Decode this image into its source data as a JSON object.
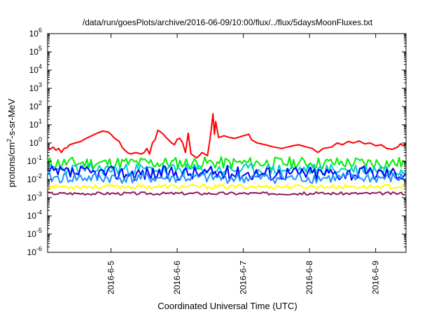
{
  "chart_data": {
    "type": "line",
    "title": "/data/run/goesPlots/archive/2016-06-09/10:00/flux/../flux/5daysMoonFluxes.txt",
    "xlabel": "Coordinated Universal Time (UTC)",
    "ylabel_parts": {
      "base": "protons/cm",
      "sup": "2",
      "rest": "-s-sr-MeV"
    },
    "yscale": "log",
    "ylim": [
      1e-06,
      1000000.0
    ],
    "y_ticks": [
      {
        "value": 1e-06,
        "base": "10",
        "exp": "-6"
      },
      {
        "value": 1e-05,
        "base": "10",
        "exp": "-5"
      },
      {
        "value": 0.0001,
        "base": "10",
        "exp": "-4"
      },
      {
        "value": 0.001,
        "base": "10",
        "exp": "-3"
      },
      {
        "value": 0.01,
        "base": "10",
        "exp": "-2"
      },
      {
        "value": 0.1,
        "base": "10",
        "exp": "-1"
      },
      {
        "value": 1,
        "base": "10",
        "exp": "0"
      },
      {
        "value": 10,
        "base": "10",
        "exp": "1"
      },
      {
        "value": 100,
        "base": "10",
        "exp": "2"
      },
      {
        "value": 1000,
        "base": "10",
        "exp": "3"
      },
      {
        "value": 10000,
        "base": "10",
        "exp": "4"
      },
      {
        "value": 100000,
        "base": "10",
        "exp": "5"
      },
      {
        "value": 1000000,
        "base": "10",
        "exp": "6"
      }
    ],
    "xlim": [
      "2016-06-04T01:00",
      "2016-06-09T11:00"
    ],
    "x_ticks": [
      {
        "at": "2016-06-05T00:00",
        "label": "2016-6-5"
      },
      {
        "at": "2016-06-06T00:00",
        "label": "2016-6-6"
      },
      {
        "at": "2016-06-07T00:00",
        "label": "2016-6-7"
      },
      {
        "at": "2016-06-08T00:00",
        "label": "2016-6-8"
      },
      {
        "at": "2016-06-09T00:00",
        "label": "2016-6-9"
      }
    ],
    "grid": false,
    "legend": "none",
    "series": [
      {
        "color": "#ff0000",
        "width": 2,
        "points": [
          [
            "2016-06-04T01:00",
            0.55
          ],
          [
            "2016-06-04T02:00",
            0.45
          ],
          [
            "2016-06-04T03:00",
            0.6
          ],
          [
            "2016-06-04T04:00",
            0.4
          ],
          [
            "2016-06-04T05:00",
            0.5
          ],
          [
            "2016-06-04T06:00",
            0.3
          ],
          [
            "2016-06-04T07:00",
            0.5
          ],
          [
            "2016-06-04T08:00",
            0.55
          ],
          [
            "2016-06-04T09:00",
            0.8
          ],
          [
            "2016-06-04T10:00",
            0.9
          ],
          [
            "2016-06-04T11:00",
            1.0
          ],
          [
            "2016-06-04T13:00",
            1.2
          ],
          [
            "2016-06-04T15:00",
            1.8
          ],
          [
            "2016-06-04T17:00",
            2.5
          ],
          [
            "2016-06-04T19:00",
            3.5
          ],
          [
            "2016-06-04T21:00",
            4.5
          ],
          [
            "2016-06-04T23:00",
            4.0
          ],
          [
            "2016-06-05T00:00",
            3.0
          ],
          [
            "2016-06-05T01:00",
            2.0
          ],
          [
            "2016-06-05T02:00",
            1.5
          ],
          [
            "2016-06-05T03:00",
            1.2
          ],
          [
            "2016-06-05T04:00",
            0.6
          ],
          [
            "2016-06-05T05:00",
            0.4
          ],
          [
            "2016-06-05T06:00",
            0.3
          ],
          [
            "2016-06-05T07:00",
            0.25
          ],
          [
            "2016-06-05T09:00",
            0.3
          ],
          [
            "2016-06-05T11:00",
            0.25
          ],
          [
            "2016-06-05T12:00",
            0.3
          ],
          [
            "2016-06-05T13:00",
            0.5
          ],
          [
            "2016-06-05T14:00",
            0.25
          ],
          [
            "2016-06-05T15:00",
            1.0
          ],
          [
            "2016-06-05T16:00",
            1.5
          ],
          [
            "2016-06-05T17:00",
            5.0
          ],
          [
            "2016-06-05T18:00",
            4.0
          ],
          [
            "2016-06-05T19:00",
            3.0
          ],
          [
            "2016-06-05T20:00",
            2.0
          ],
          [
            "2016-06-05T22:00",
            1.0
          ],
          [
            "2016-06-05T23:00",
            0.8
          ],
          [
            "2016-06-06T00:00",
            1.6
          ],
          [
            "2016-06-06T01:00",
            1.8
          ],
          [
            "2016-06-06T02:00",
            1.0
          ],
          [
            "2016-06-06T03:00",
            0.3
          ],
          [
            "2016-06-06T04:00",
            3.5
          ],
          [
            "2016-06-06T05:00",
            0.25
          ],
          [
            "2016-06-06T06:00",
            0.2
          ],
          [
            "2016-06-06T07:00",
            0.15
          ],
          [
            "2016-06-06T08:00",
            0.2
          ],
          [
            "2016-06-06T09:00",
            0.3
          ],
          [
            "2016-06-06T10:00",
            0.25
          ],
          [
            "2016-06-06T11:00",
            0.2
          ],
          [
            "2016-06-06T12:00",
            2.0
          ],
          [
            "2016-06-06T13:00",
            40.0
          ],
          [
            "2016-06-06T13:30",
            3.0
          ],
          [
            "2016-06-06T14:00",
            15.0
          ],
          [
            "2016-06-06T15:00",
            2.0
          ],
          [
            "2016-06-06T17:00",
            2.5
          ],
          [
            "2016-06-06T19:00",
            2.0
          ],
          [
            "2016-06-06T21:00",
            1.8
          ],
          [
            "2016-06-07T00:00",
            2.5
          ],
          [
            "2016-06-07T02:00",
            3.0
          ],
          [
            "2016-06-07T03:00",
            1.5
          ],
          [
            "2016-06-07T05:00",
            1.0
          ],
          [
            "2016-06-07T08:00",
            0.8
          ],
          [
            "2016-06-07T11:00",
            0.6
          ],
          [
            "2016-06-07T14:00",
            0.5
          ],
          [
            "2016-06-07T16:00",
            0.6
          ],
          [
            "2016-06-07T18:00",
            0.7
          ],
          [
            "2016-06-07T20:00",
            0.8
          ],
          [
            "2016-06-07T23:00",
            0.6
          ],
          [
            "2016-06-08T01:00",
            0.5
          ],
          [
            "2016-06-08T03:00",
            0.3
          ],
          [
            "2016-06-08T05:00",
            0.5
          ],
          [
            "2016-06-08T08:00",
            0.6
          ],
          [
            "2016-06-08T10:00",
            1.0
          ],
          [
            "2016-06-08T12:00",
            0.8
          ],
          [
            "2016-06-08T14:00",
            1.2
          ],
          [
            "2016-06-08T16:00",
            1.0
          ],
          [
            "2016-06-08T18:00",
            1.3
          ],
          [
            "2016-06-08T20:00",
            0.9
          ],
          [
            "2016-06-08T22:00",
            1.0
          ],
          [
            "2016-06-09T00:00",
            0.7
          ],
          [
            "2016-06-09T02:00",
            0.8
          ],
          [
            "2016-06-09T04:00",
            0.5
          ],
          [
            "2016-06-09T06:00",
            0.45
          ],
          [
            "2016-06-09T08:00",
            0.6
          ],
          [
            "2016-06-09T09:00",
            0.9
          ],
          [
            "2016-06-09T10:00",
            0.7
          ],
          [
            "2016-06-09T11:00",
            0.9
          ]
        ]
      },
      {
        "color": "#00ee00",
        "width": 2,
        "base": 0.08,
        "spread": 0.34,
        "seed": 11
      },
      {
        "color": "#00cccc",
        "width": 2,
        "base": 0.035,
        "spread": 0.32,
        "seed": 23
      },
      {
        "color": "#0000ff",
        "width": 2,
        "base": 0.022,
        "spread": 0.4,
        "seed": 37
      },
      {
        "color": "#1e90ff",
        "width": 2,
        "base": 0.012,
        "spread": 0.3,
        "seed": 41
      },
      {
        "color": "#ffff00",
        "width": 2,
        "base": 0.004,
        "spread": 0.12,
        "seed": 53
      },
      {
        "color": "#8b1a5a",
        "width": 2,
        "base": 0.0017,
        "spread": 0.08,
        "seed": 67
      }
    ]
  }
}
